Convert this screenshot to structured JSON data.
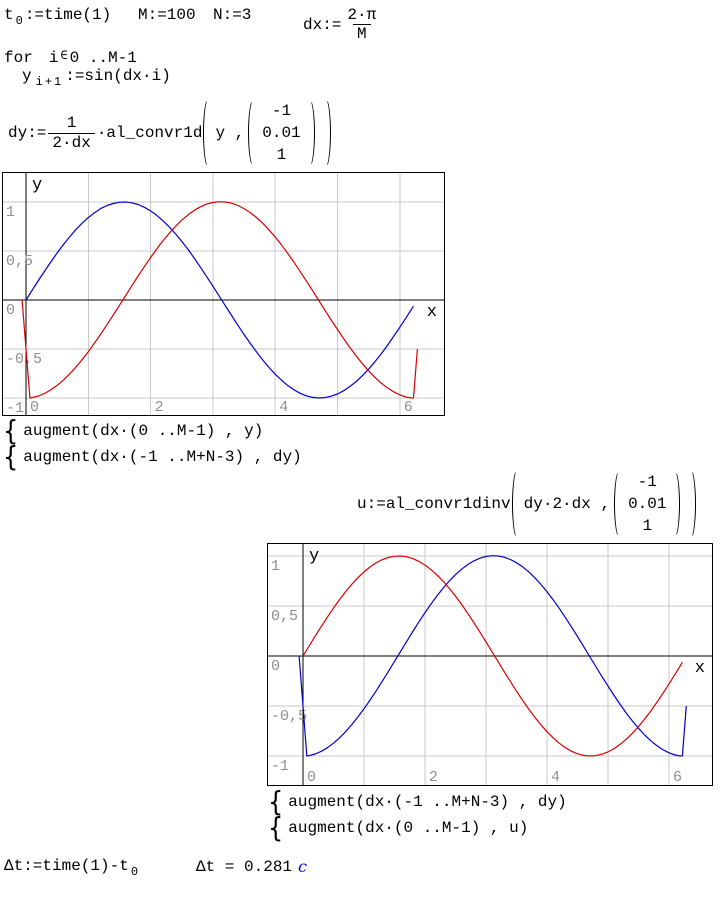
{
  "worksheet": {
    "legend_brace": "{",
    "t0_def": {
      "var": "t",
      "sub": "0",
      "op": ":=",
      "rhs": "time(1)"
    },
    "M_def": "M:=100",
    "N_def": "N:=3",
    "dx_def": {
      "lhs": "dx:=",
      "num": "2·π",
      "den": "M"
    },
    "for_line": {
      "kw": "for",
      "var": "i",
      "in_op": "∈",
      "range": "0 ..M-1"
    },
    "y_def": {
      "var": "y",
      "sub": "i+1",
      "op": ":=",
      "rhs": "sin(dx·i)"
    },
    "dy_def": {
      "lhs": "dy:=",
      "num": "1",
      "den": "2·dx",
      "dot": "·",
      "fn": "al_convr1d",
      "arg": "y ,",
      "vec": [
        "-1",
        "0.01",
        "1"
      ]
    },
    "legend1": [
      "augment(dx·(0 ..M-1) , y)",
      "augment(dx·(-1 ..M+N-3) , dy)"
    ],
    "u_def": {
      "lhs": "u:=",
      "fn": "al_convr1dinv",
      "arg": "dy·2·dx ,",
      "vec": [
        "-1",
        "0.01",
        "1"
      ]
    },
    "legend2": [
      "augment(dx·(-1 ..M+N-3) , dy)",
      "augment(dx·(0 ..M-1) , u)"
    ],
    "dt_def": {
      "lhs": "Δt:=",
      "rhs": "time(1)-t",
      "sub": "0"
    },
    "dt_result": {
      "lhs": "Δt = 0.281",
      "unit": "c"
    }
  },
  "colors": {
    "trace_blue": "#0000cc",
    "trace_red": "#d80000",
    "grid": "#c9c9c9",
    "tick_label": "#8f8f8f",
    "axis": "#000000",
    "unit": "#0000ff"
  },
  "chart_data": [
    {
      "type": "line",
      "title": "",
      "xlabel": "x",
      "ylabel": "y",
      "xlim": [
        -0.385,
        6.726
      ],
      "ylim": [
        -1.184,
        1.306
      ],
      "x_ticks": [
        0,
        2,
        4,
        6
      ],
      "x_tick_labels": [
        "0",
        "2",
        "4",
        "6"
      ],
      "y_ticks": [
        1,
        0.5,
        0,
        -0.5,
        -1
      ],
      "y_tick_labels": [
        "1",
        "0,5",
        "0",
        "-0,5",
        "-1"
      ],
      "x_grid_step": 1,
      "y_grid_step": 0.5,
      "grid": true,
      "legend_position": "below",
      "series": [
        {
          "name": "augment(dx·(0 ..M-1) , y)",
          "color": "#0000cc",
          "points_ref": "sin_series"
        },
        {
          "name": "augment(dx·(-1 ..M+N-3) , dy)",
          "color": "#d80000",
          "points_ref": "dy_series"
        }
      ]
    },
    {
      "type": "line",
      "title": "",
      "xlabel": "x",
      "ylabel": "y",
      "xlim": [
        -0.59,
        6.721
      ],
      "ylim": [
        -1.3,
        1.13
      ],
      "x_ticks": [
        0,
        2,
        4,
        6
      ],
      "x_tick_labels": [
        "0",
        "2",
        "4",
        "6"
      ],
      "y_ticks": [
        1,
        0.5,
        0,
        -0.5,
        -1
      ],
      "y_tick_labels": [
        "1",
        "0,5",
        "0",
        "-0,5",
        "-1"
      ],
      "x_grid_step": 1,
      "y_grid_step": 0.5,
      "grid": true,
      "legend_position": "below",
      "series": [
        {
          "name": "augment(dx·(-1 ..M+N-3) , dy)",
          "color": "#0000cc",
          "points_ref": "dy_series"
        },
        {
          "name": "augment(dx·(0 ..M-1) , u)",
          "color": "#d80000",
          "points_ref": "sin_series"
        }
      ]
    }
  ],
  "series_data": {
    "sin_series": [
      [
        0,
        0
      ],
      [
        0.1,
        0.1
      ],
      [
        0.2,
        0.199
      ],
      [
        0.3,
        0.296
      ],
      [
        0.4,
        0.389
      ],
      [
        0.5,
        0.479
      ],
      [
        0.6,
        0.565
      ],
      [
        0.7,
        0.644
      ],
      [
        0.8,
        0.717
      ],
      [
        0.9,
        0.783
      ],
      [
        1,
        0.841
      ],
      [
        1.1,
        0.891
      ],
      [
        1.2,
        0.932
      ],
      [
        1.3,
        0.964
      ],
      [
        1.4,
        0.985
      ],
      [
        1.5,
        0.997
      ],
      [
        1.6,
        1.0
      ],
      [
        1.7,
        0.992
      ],
      [
        1.8,
        0.974
      ],
      [
        1.9,
        0.946
      ],
      [
        2,
        0.909
      ],
      [
        2.1,
        0.863
      ],
      [
        2.2,
        0.808
      ],
      [
        2.3,
        0.746
      ],
      [
        2.4,
        0.675
      ],
      [
        2.5,
        0.599
      ],
      [
        2.6,
        0.516
      ],
      [
        2.7,
        0.427
      ],
      [
        2.8,
        0.335
      ],
      [
        2.9,
        0.239
      ],
      [
        3,
        0.141
      ],
      [
        3.1,
        0.042
      ],
      [
        3.2,
        -0.058
      ],
      [
        3.3,
        -0.158
      ],
      [
        3.4,
        -0.256
      ],
      [
        3.5,
        -0.351
      ],
      [
        3.6,
        -0.443
      ],
      [
        3.7,
        -0.53
      ],
      [
        3.8,
        -0.612
      ],
      [
        3.9,
        -0.688
      ],
      [
        4,
        -0.757
      ],
      [
        4.1,
        -0.818
      ],
      [
        4.2,
        -0.872
      ],
      [
        4.3,
        -0.916
      ],
      [
        4.4,
        -0.952
      ],
      [
        4.5,
        -0.978
      ],
      [
        4.6,
        -0.994
      ],
      [
        4.7,
        -1.0
      ],
      [
        4.8,
        -0.996
      ],
      [
        4.9,
        -0.982
      ],
      [
        5,
        -0.959
      ],
      [
        5.1,
        -0.926
      ],
      [
        5.2,
        -0.883
      ],
      [
        5.3,
        -0.832
      ],
      [
        5.4,
        -0.773
      ],
      [
        5.5,
        -0.706
      ],
      [
        5.6,
        -0.631
      ],
      [
        5.7,
        -0.551
      ],
      [
        5.8,
        -0.465
      ],
      [
        5.9,
        -0.374
      ],
      [
        6,
        -0.279
      ],
      [
        6.1,
        -0.182
      ],
      [
        6.22,
        -0.063
      ]
    ],
    "dy_series": [
      [
        -0.063,
        0
      ],
      [
        0,
        -0.5
      ],
      [
        0.063,
        -1.0
      ],
      [
        0.1,
        -0.996
      ],
      [
        0.2,
        -0.98
      ],
      [
        0.3,
        -0.953
      ],
      [
        0.4,
        -0.917
      ],
      [
        0.5,
        -0.872
      ],
      [
        0.6,
        -0.818
      ],
      [
        0.7,
        -0.756
      ],
      [
        0.8,
        -0.686
      ],
      [
        0.9,
        -0.609
      ],
      [
        1,
        -0.528
      ],
      [
        1.1,
        -0.44
      ],
      [
        1.2,
        -0.348
      ],
      [
        1.3,
        -0.252
      ],
      [
        1.4,
        -0.154
      ],
      [
        1.5,
        -0.054
      ],
      [
        1.6,
        0.046
      ],
      [
        1.7,
        0.146
      ],
      [
        1.8,
        0.245
      ],
      [
        1.9,
        0.341
      ],
      [
        2,
        0.433
      ],
      [
        2.1,
        0.521
      ],
      [
        2.2,
        0.604
      ],
      [
        2.3,
        0.681
      ],
      [
        2.4,
        0.751
      ],
      [
        2.5,
        0.814
      ],
      [
        2.6,
        0.868
      ],
      [
        2.7,
        0.914
      ],
      [
        2.8,
        0.951
      ],
      [
        2.9,
        0.978
      ],
      [
        3,
        0.995
      ],
      [
        3.1,
        1.003
      ],
      [
        3.2,
        1.0
      ],
      [
        3.3,
        0.988
      ],
      [
        3.4,
        0.965
      ],
      [
        3.5,
        0.933
      ],
      [
        3.6,
        0.892
      ],
      [
        3.7,
        0.842
      ],
      [
        3.8,
        0.783
      ],
      [
        3.9,
        0.716
      ],
      [
        4,
        0.643
      ],
      [
        4.1,
        0.563
      ],
      [
        4.2,
        0.477
      ],
      [
        4.3,
        0.386
      ],
      [
        4.4,
        0.292
      ],
      [
        4.5,
        0.195
      ],
      [
        4.6,
        0.096
      ],
      [
        4.7,
        -0.005
      ],
      [
        4.8,
        -0.105
      ],
      [
        4.9,
        -0.204
      ],
      [
        5,
        -0.301
      ],
      [
        5.1,
        -0.395
      ],
      [
        5.2,
        -0.485
      ],
      [
        5.3,
        -0.571
      ],
      [
        5.4,
        -0.65
      ],
      [
        5.5,
        -0.723
      ],
      [
        5.6,
        -0.789
      ],
      [
        5.7,
        -0.847
      ],
      [
        5.8,
        -0.896
      ],
      [
        5.9,
        -0.937
      ],
      [
        6,
        -0.968
      ],
      [
        6.1,
        -0.99
      ],
      [
        6.2,
        -1.001
      ],
      [
        6.22,
        -0.998
      ],
      [
        6.283,
        -0.5
      ]
    ]
  }
}
